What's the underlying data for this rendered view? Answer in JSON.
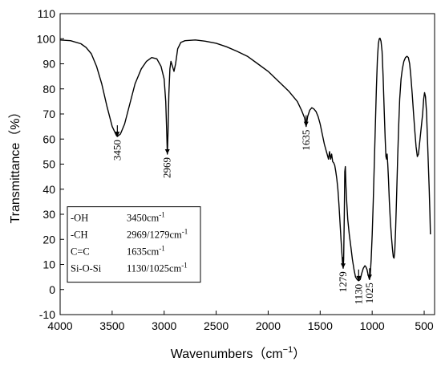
{
  "chart_data": {
    "type": "line",
    "xlabel": "Wavenumbers（cm",
    "xlabel_sup": "−1",
    "xlabel_close": "）",
    "ylabel": "Transmittance（%）",
    "xlim": [
      4000,
      400
    ],
    "ylim": [
      -10,
      110
    ],
    "x_ticks": [
      4000,
      3500,
      3000,
      2500,
      2000,
      1500,
      1000,
      500
    ],
    "y_ticks": [
      -10,
      0,
      10,
      20,
      30,
      40,
      50,
      60,
      70,
      80,
      90,
      100,
      110
    ],
    "grid": false,
    "series": [
      {
        "points": [
          [
            4000,
            99.5
          ],
          [
            3900,
            99.2
          ],
          [
            3800,
            98.0
          ],
          [
            3750,
            96.5
          ],
          [
            3700,
            94.0
          ],
          [
            3650,
            89.0
          ],
          [
            3600,
            82.0
          ],
          [
            3550,
            73.0
          ],
          [
            3500,
            65.0
          ],
          [
            3460,
            61.5
          ],
          [
            3450,
            61.0
          ],
          [
            3420,
            62.0
          ],
          [
            3380,
            66.0
          ],
          [
            3330,
            74.0
          ],
          [
            3280,
            82.0
          ],
          [
            3220,
            88.0
          ],
          [
            3170,
            91.0
          ],
          [
            3120,
            92.5
          ],
          [
            3070,
            92.0
          ],
          [
            3030,
            89.0
          ],
          [
            3000,
            84.0
          ],
          [
            2985,
            75.0
          ],
          [
            2975,
            62.0
          ],
          [
            2969,
            54.0
          ],
          [
            2963,
            62.0
          ],
          [
            2955,
            78.0
          ],
          [
            2945,
            88.0
          ],
          [
            2935,
            91.0
          ],
          [
            2920,
            89.0
          ],
          [
            2905,
            87.0
          ],
          [
            2890,
            90.0
          ],
          [
            2870,
            96.0
          ],
          [
            2840,
            98.5
          ],
          [
            2800,
            99.2
          ],
          [
            2700,
            99.5
          ],
          [
            2600,
            99.0
          ],
          [
            2500,
            98.2
          ],
          [
            2400,
            96.8
          ],
          [
            2300,
            95.0
          ],
          [
            2200,
            93.0
          ],
          [
            2100,
            90.0
          ],
          [
            2000,
            87.0
          ],
          [
            1900,
            83.0
          ],
          [
            1800,
            79.0
          ],
          [
            1720,
            75.0
          ],
          [
            1680,
            71.5
          ],
          [
            1650,
            68.5
          ],
          [
            1635,
            65.0
          ],
          [
            1620,
            69.0
          ],
          [
            1600,
            71.5
          ],
          [
            1580,
            72.5
          ],
          [
            1560,
            72.0
          ],
          [
            1540,
            71.0
          ],
          [
            1520,
            69.0
          ],
          [
            1500,
            66.0
          ],
          [
            1480,
            62.0
          ],
          [
            1460,
            58.0
          ],
          [
            1440,
            55.0
          ],
          [
            1420,
            52.0
          ],
          [
            1410,
            55.0
          ],
          [
            1400,
            52.0
          ],
          [
            1390,
            54.0
          ],
          [
            1380,
            51.0
          ],
          [
            1370,
            50.5
          ],
          [
            1360,
            49.5
          ],
          [
            1350,
            47.0
          ],
          [
            1340,
            44.0
          ],
          [
            1330,
            40.0
          ],
          [
            1320,
            34.0
          ],
          [
            1310,
            27.0
          ],
          [
            1300,
            20.0
          ],
          [
            1290,
            14.0
          ],
          [
            1284,
            10.0
          ],
          [
            1279,
            8.5
          ],
          [
            1274,
            12.0
          ],
          [
            1268,
            30.0
          ],
          [
            1263,
            47.0
          ],
          [
            1258,
            49.0
          ],
          [
            1252,
            41.0
          ],
          [
            1245,
            35.0
          ],
          [
            1235,
            28.0
          ],
          [
            1220,
            22.0
          ],
          [
            1205,
            17.0
          ],
          [
            1190,
            12.0
          ],
          [
            1175,
            8.0
          ],
          [
            1160,
            5.0
          ],
          [
            1145,
            4.0
          ],
          [
            1130,
            3.5
          ],
          [
            1115,
            4.0
          ],
          [
            1100,
            6.5
          ],
          [
            1085,
            8.5
          ],
          [
            1070,
            9.5
          ],
          [
            1060,
            9.0
          ],
          [
            1050,
            8.0
          ],
          [
            1040,
            6.0
          ],
          [
            1030,
            4.5
          ],
          [
            1025,
            4.0
          ],
          [
            1018,
            6.0
          ],
          [
            1010,
            12.0
          ],
          [
            1000,
            22.0
          ],
          [
            990,
            35.0
          ],
          [
            980,
            50.0
          ],
          [
            970,
            65.0
          ],
          [
            960,
            80.0
          ],
          [
            950,
            92.0
          ],
          [
            940,
            98.0
          ],
          [
            932,
            100.0
          ],
          [
            925,
            100.2
          ],
          [
            915,
            99.0
          ],
          [
            905,
            95.0
          ],
          [
            895,
            85.0
          ],
          [
            885,
            72.0
          ],
          [
            875,
            60.0
          ],
          [
            868,
            53.0
          ],
          [
            862,
            52.0
          ],
          [
            856,
            54.0
          ],
          [
            850,
            50.0
          ],
          [
            843,
            44.0
          ],
          [
            835,
            35.0
          ],
          [
            825,
            27.0
          ],
          [
            815,
            21.0
          ],
          [
            805,
            16.0
          ],
          [
            797,
            13.0
          ],
          [
            790,
            12.5
          ],
          [
            783,
            15.0
          ],
          [
            775,
            24.0
          ],
          [
            765,
            38.0
          ],
          [
            755,
            52.0
          ],
          [
            745,
            65.0
          ],
          [
            735,
            76.0
          ],
          [
            722,
            84.0
          ],
          [
            710,
            88.0
          ],
          [
            695,
            91.0
          ],
          [
            680,
            92.5
          ],
          [
            665,
            93.0
          ],
          [
            652,
            92.5
          ],
          [
            640,
            90.0
          ],
          [
            628,
            85.0
          ],
          [
            615,
            78.0
          ],
          [
            602,
            70.0
          ],
          [
            590,
            63.0
          ],
          [
            578,
            57.0
          ],
          [
            566,
            53.0
          ],
          [
            555,
            54.0
          ],
          [
            545,
            58.0
          ],
          [
            535,
            62.0
          ],
          [
            525,
            66.0
          ],
          [
            515,
            70.0
          ],
          [
            505,
            76.0
          ],
          [
            496,
            78.5
          ],
          [
            488,
            77.0
          ],
          [
            478,
            71.0
          ],
          [
            470,
            62.0
          ],
          [
            460,
            50.0
          ],
          [
            452,
            40.0
          ],
          [
            445,
            30.0
          ],
          [
            440,
            22.0
          ]
        ]
      }
    ],
    "annotations": [
      {
        "label": "3450",
        "x": 3450,
        "y": 61.0
      },
      {
        "label": "2969",
        "x": 2969,
        "y": 54.0
      },
      {
        "label": "1635",
        "x": 1635,
        "y": 65.0
      },
      {
        "label": "1279",
        "x": 1279,
        "y": 8.5
      },
      {
        "label": "1130",
        "x": 1130,
        "y": 3.5
      },
      {
        "label": "1025",
        "x": 1025,
        "y": 4.0
      }
    ],
    "legend_box": [
      {
        "group": "-OH",
        "value": "3450cm",
        "sup": "-1"
      },
      {
        "group": "-CH",
        "value": "2969/1279cm",
        "sup": "-1"
      },
      {
        "group": "C=C",
        "value": "1635cm",
        "sup": "-1"
      },
      {
        "group": "Si-O-Si",
        "value": "1130/1025cm",
        "sup": "-1"
      }
    ]
  }
}
